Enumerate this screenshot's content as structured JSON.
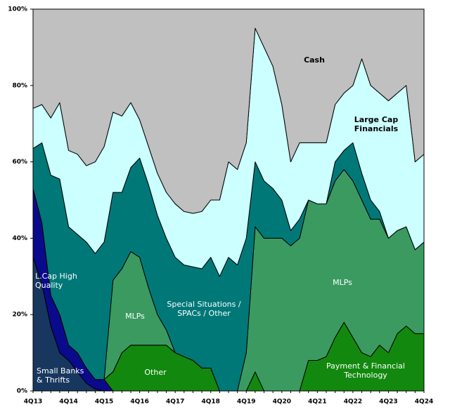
{
  "chart_data": {
    "type": "stacked-area",
    "categories": [
      "4Q13",
      null,
      null,
      null,
      "4Q14",
      null,
      null,
      null,
      "4Q15",
      null,
      null,
      null,
      "4Q16",
      null,
      null,
      null,
      "4Q17",
      null,
      null,
      null,
      "4Q18",
      null,
      null,
      null,
      "4Q19",
      null,
      null,
      null,
      "4Q20",
      null,
      null,
      null,
      "4Q21",
      null,
      null,
      null,
      "4Q22",
      null,
      null,
      null,
      "4Q23",
      null,
      null,
      null,
      "4Q24"
    ],
    "ylim": [
      0,
      100
    ],
    "yticks": [
      {
        "value": 0,
        "label": "0%"
      },
      {
        "value": 20,
        "label": "20%"
      },
      {
        "value": 40,
        "label": "40%"
      },
      {
        "value": 60,
        "label": "60%"
      },
      {
        "value": 80,
        "label": "80%"
      },
      {
        "value": 100,
        "label": "100%"
      }
    ],
    "series": [
      {
        "name": "Small Banks & Thrifts",
        "color": "#17375e",
        "values": [
          35,
          28,
          17,
          10,
          8,
          5,
          2,
          0.5,
          0,
          0,
          0,
          0,
          0,
          0,
          0,
          0,
          0,
          0,
          0,
          0,
          0,
          0,
          0,
          0,
          0,
          0,
          0,
          0,
          0,
          0,
          0,
          0,
          0,
          0,
          0,
          0,
          0,
          0,
          0,
          0,
          0,
          0,
          0,
          0,
          0
        ]
      },
      {
        "name": "L.Cap High Quality",
        "color": "#0a0a8c",
        "values": [
          18,
          16,
          8,
          10,
          4,
          5,
          4,
          2.5,
          3,
          0,
          0,
          0,
          0,
          0,
          0,
          0,
          0,
          0,
          0,
          0,
          0,
          0,
          0,
          0,
          0,
          0,
          0,
          0,
          0,
          0,
          0,
          0,
          0,
          0,
          0,
          0,
          0,
          0,
          0,
          0,
          0,
          0,
          0,
          0,
          0
        ]
      },
      {
        "name": "Other",
        "color": "#12880f",
        "values": [
          0,
          0,
          0,
          0,
          0,
          0,
          0,
          0,
          0,
          5,
          10,
          12,
          12,
          12,
          12,
          12,
          10,
          9,
          8,
          6,
          6,
          0,
          0,
          0,
          0,
          0,
          0,
          0,
          0,
          0,
          0,
          0,
          0,
          0,
          0,
          0,
          0,
          0,
          0,
          0,
          0,
          0,
          0,
          0,
          0
        ]
      },
      {
        "name": "Payment & Financial Technology",
        "color": "#12880f",
        "values": [
          0,
          0,
          0,
          0,
          0,
          0,
          0,
          0,
          0,
          0,
          0,
          0,
          0,
          0,
          0,
          0,
          0,
          0,
          0,
          0,
          0,
          0,
          0,
          0,
          0,
          5,
          0,
          0,
          0,
          0,
          0,
          8,
          8,
          9,
          14,
          18,
          14,
          10,
          9,
          12,
          10,
          15,
          17,
          15,
          15
        ]
      },
      {
        "name": "MLPs",
        "color": "#3a9a60",
        "values": [
          0,
          0,
          0,
          0,
          0,
          0,
          0,
          0,
          0,
          24,
          22,
          24.5,
          23,
          15,
          8,
          4,
          0,
          0,
          0,
          0,
          0,
          0,
          0,
          0,
          10,
          38,
          40,
          40,
          40,
          38,
          40,
          42,
          41,
          40,
          41,
          40,
          41,
          40,
          36,
          33,
          30,
          27,
          26,
          22,
          24
        ]
      },
      {
        "name": "Special Situations / SPACs / Other",
        "color": "#007878",
        "values": [
          10.5,
          21,
          31.5,
          35.5,
          31,
          31,
          33,
          33,
          36,
          23,
          20,
          22,
          26,
          27,
          26,
          24,
          25,
          24,
          24.5,
          26,
          29,
          30,
          35,
          33,
          30,
          17,
          15,
          13,
          10,
          4,
          5,
          0,
          0,
          0,
          5,
          5,
          10,
          7,
          5,
          2,
          0,
          0,
          0,
          0,
          0
        ]
      },
      {
        "name": "Large Cap Financials",
        "color": "#ccffff",
        "values": [
          10.5,
          10,
          15,
          20,
          20,
          21,
          20,
          24,
          25,
          21,
          20,
          17,
          10,
          10,
          11,
          12,
          14,
          14,
          14,
          15,
          15,
          20,
          25,
          25,
          25,
          35,
          35,
          32,
          25,
          18,
          20,
          15,
          16,
          16,
          15,
          15,
          15,
          30,
          30,
          31,
          36,
          36,
          37,
          23,
          23
        ]
      },
      {
        "name": "Cash",
        "color": "#c0c0c0",
        "values": [
          26,
          25,
          28.5,
          24.5,
          37,
          38,
          41,
          40,
          36,
          27,
          28,
          24.5,
          29,
          36,
          43,
          48,
          51,
          53,
          53.5,
          53,
          50,
          50,
          40,
          42,
          35,
          5,
          10,
          15,
          25,
          40,
          35,
          35,
          35,
          35,
          25,
          22,
          20,
          13,
          20,
          22,
          24,
          22,
          20,
          40,
          38
        ]
      }
    ]
  }
}
